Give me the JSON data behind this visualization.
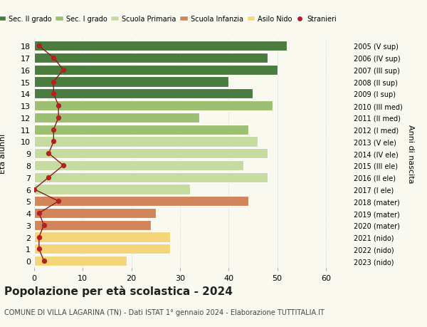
{
  "ages": [
    0,
    1,
    2,
    3,
    4,
    5,
    6,
    7,
    8,
    9,
    10,
    11,
    12,
    13,
    14,
    15,
    16,
    17,
    18
  ],
  "right_labels": [
    "2023 (nido)",
    "2022 (nido)",
    "2021 (nido)",
    "2020 (mater)",
    "2019 (mater)",
    "2018 (mater)",
    "2017 (I ele)",
    "2016 (II ele)",
    "2015 (III ele)",
    "2014 (IV ele)",
    "2013 (V ele)",
    "2012 (I med)",
    "2011 (II med)",
    "2010 (III med)",
    "2009 (I sup)",
    "2008 (II sup)",
    "2007 (III sup)",
    "2006 (IV sup)",
    "2005 (V sup)"
  ],
  "bar_values": [
    19,
    28,
    28,
    24,
    25,
    44,
    32,
    48,
    43,
    48,
    46,
    44,
    34,
    49,
    45,
    40,
    50,
    48,
    52
  ],
  "stranieri": [
    2,
    1,
    1,
    2,
    1,
    5,
    0,
    3,
    6,
    3,
    4,
    4,
    5,
    5,
    4,
    4,
    6,
    4,
    1
  ],
  "bar_colors": [
    "#f5d57a",
    "#f5d57a",
    "#f5d57a",
    "#d2845a",
    "#d2845a",
    "#d2845a",
    "#c5dba0",
    "#c5dba0",
    "#c5dba0",
    "#c5dba0",
    "#c5dba0",
    "#9dbf72",
    "#9dbf72",
    "#9dbf72",
    "#4a7c3f",
    "#4a7c3f",
    "#4a7c3f",
    "#4a7c3f",
    "#4a7c3f"
  ],
  "legend_labels": [
    "Sec. II grado",
    "Sec. I grado",
    "Scuola Primaria",
    "Scuola Infanzia",
    "Asilo Nido",
    "Stranieri"
  ],
  "legend_colors": [
    "#4a7c3f",
    "#9dbf72",
    "#c5dba0",
    "#d2845a",
    "#f5d57a",
    "#b22222"
  ],
  "title": "Popolazione per età scolastica - 2024",
  "subtitle": "COMUNE DI VILLA LAGARINA (TN) - Dati ISTAT 1° gennaio 2024 - Elaborazione TUTTITALIA.IT",
  "xlabel": "Età alunni",
  "ylabel_right": "Anni di nascita",
  "xlim": [
    0,
    65
  ],
  "background_color": "#f9f9f0"
}
